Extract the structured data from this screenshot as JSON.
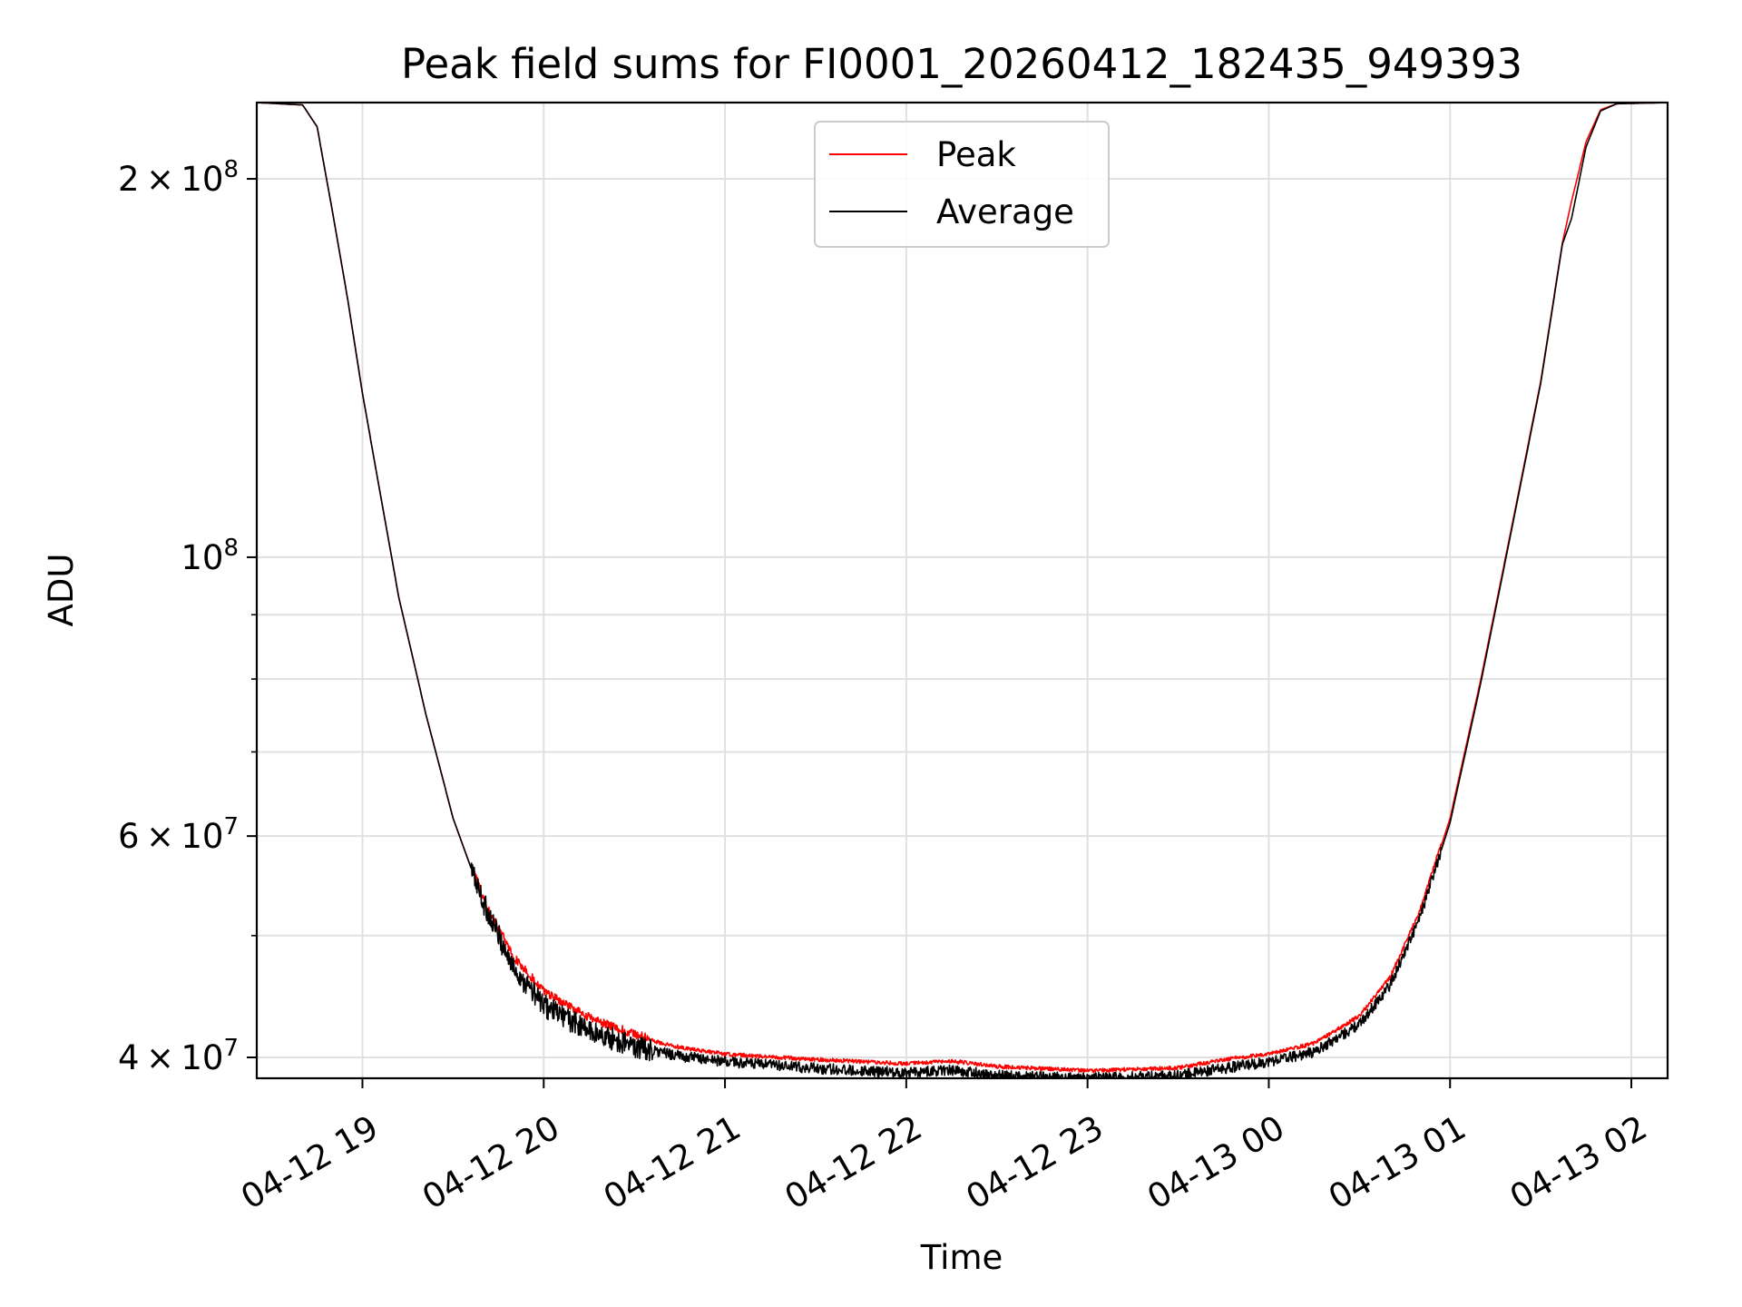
{
  "chart_data": {
    "type": "line",
    "title": "Peak field sums for FI0001_20260412_182435_949393",
    "xlabel": "Time",
    "ylabel": "ADU",
    "y_scale": "log",
    "ylim": [
      38500000,
      230000000
    ],
    "xlim_hours": [
      18.417,
      26.2
    ],
    "grid": true,
    "legend_position": "upper center",
    "x_ticks": [
      {
        "hour": 19,
        "label": "04-12 19"
      },
      {
        "hour": 20,
        "label": "04-12 20"
      },
      {
        "hour": 21,
        "label": "04-12 21"
      },
      {
        "hour": 22,
        "label": "04-12 22"
      },
      {
        "hour": 23,
        "label": "04-12 23"
      },
      {
        "hour": 24,
        "label": "04-13 00"
      },
      {
        "hour": 25,
        "label": "04-13 01"
      },
      {
        "hour": 26,
        "label": "04-13 02"
      }
    ],
    "y_major_ticks": [
      {
        "value": 40000000,
        "mantissa": "4",
        "exponent": "7"
      },
      {
        "value": 60000000,
        "mantissa": "6",
        "exponent": "7"
      },
      {
        "value": 100000000,
        "mantissa": "",
        "exponent": "8"
      },
      {
        "value": 200000000,
        "mantissa": "2",
        "exponent": "8"
      }
    ],
    "y_minor_ticks": [
      50000000,
      70000000,
      80000000,
      90000000
    ],
    "tick_base": "10",
    "times_sign": "×",
    "series": [
      {
        "name": "Peak",
        "color": "#ff0000",
        "noise": 0.022,
        "x": [
          18.42,
          18.67,
          18.75,
          18.83,
          18.92,
          19.0,
          19.1,
          19.2,
          19.35,
          19.5,
          19.67,
          19.83,
          20.0,
          20.25,
          20.5,
          20.75,
          21.0,
          21.5,
          22.0,
          22.25,
          22.5,
          23.0,
          23.5,
          23.75,
          24.0,
          24.25,
          24.5,
          24.67,
          24.83,
          25.0,
          25.17,
          25.33,
          25.5,
          25.62,
          25.67,
          25.75,
          25.83,
          25.92,
          26.2
        ],
        "y": [
          230000000,
          229000000,
          220000000,
          190000000,
          160000000,
          135000000,
          112000000,
          93000000,
          75000000,
          62000000,
          53000000,
          47800000,
          44800000,
          42700000,
          41400000,
          40600000,
          40100000,
          39700000,
          39400000,
          39600000,
          39200000,
          38900000,
          39100000,
          39700000,
          40100000,
          40900000,
          43000000,
          46200000,
          52000000,
          62000000,
          80000000,
          104000000,
          138000000,
          178000000,
          192000000,
          214000000,
          227000000,
          229500000,
          230000000
        ]
      },
      {
        "name": "Average",
        "color": "#000000",
        "noise": 0.018,
        "x": [
          18.42,
          18.67,
          18.75,
          18.83,
          18.92,
          19.0,
          19.1,
          19.2,
          19.35,
          19.5,
          19.67,
          19.83,
          20.0,
          20.25,
          20.5,
          20.75,
          21.0,
          21.5,
          22.0,
          22.25,
          22.5,
          23.0,
          23.5,
          23.75,
          24.0,
          24.25,
          24.5,
          24.67,
          24.83,
          25.0,
          25.17,
          25.33,
          25.5,
          25.62,
          25.67,
          25.75,
          25.83,
          25.92,
          26.2
        ],
        "y": [
          230000000,
          229000000,
          220000000,
          190000000,
          160000000,
          135000000,
          112000000,
          93000000,
          75000000,
          62000000,
          53000000,
          47200000,
          44000000,
          42000000,
          40800000,
          40100000,
          39700000,
          39200000,
          38900000,
          39100000,
          38700000,
          38500000,
          38700000,
          39200000,
          39700000,
          40400000,
          42500000,
          45700000,
          51500000,
          61500000,
          79500000,
          103500000,
          137500000,
          177500000,
          186000000,
          212000000,
          226500000,
          229500000,
          230000000
        ]
      }
    ]
  }
}
